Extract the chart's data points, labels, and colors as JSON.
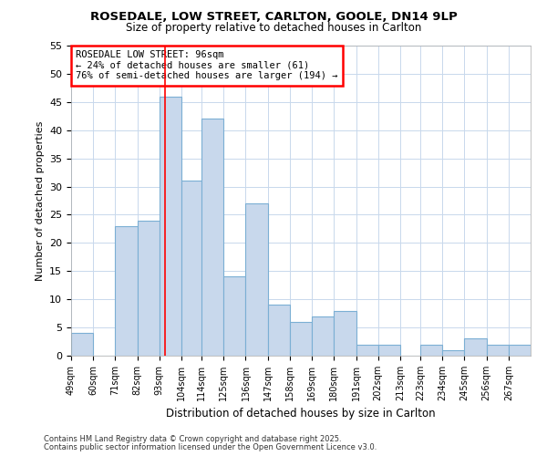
{
  "title": "ROSEDALE, LOW STREET, CARLTON, GOOLE, DN14 9LP",
  "subtitle": "Size of property relative to detached houses in Carlton",
  "xlabel": "Distribution of detached houses by size in Carlton",
  "ylabel": "Number of detached properties",
  "bar_color": "#c8d8ec",
  "bar_edgecolor": "#7bafd4",
  "bar_linewidth": 0.8,
  "categories": [
    "49sqm",
    "60sqm",
    "71sqm",
    "82sqm",
    "93sqm",
    "104sqm",
    "114sqm",
    "125sqm",
    "136sqm",
    "147sqm",
    "158sqm",
    "169sqm",
    "180sqm",
    "191sqm",
    "202sqm",
    "213sqm",
    "223sqm",
    "234sqm",
    "245sqm",
    "256sqm",
    "267sqm"
  ],
  "values": [
    4,
    0,
    23,
    24,
    46,
    31,
    42,
    14,
    27,
    9,
    6,
    7,
    8,
    2,
    2,
    0,
    2,
    1,
    3,
    2,
    2
  ],
  "bin_edges": [
    49,
    60,
    71,
    82,
    93,
    104,
    114,
    125,
    136,
    147,
    158,
    169,
    180,
    191,
    202,
    213,
    223,
    234,
    245,
    256,
    267,
    278
  ],
  "red_line_x": 96,
  "ylim": [
    0,
    55
  ],
  "yticks": [
    0,
    5,
    10,
    15,
    20,
    25,
    30,
    35,
    40,
    45,
    50,
    55
  ],
  "annotation_title": "ROSEDALE LOW STREET: 96sqm",
  "annotation_line1": "← 24% of detached houses are smaller (61)",
  "annotation_line2": "76% of semi-detached houses are larger (194) →",
  "footer1": "Contains HM Land Registry data © Crown copyright and database right 2025.",
  "footer2": "Contains public sector information licensed under the Open Government Licence v3.0.",
  "background_color": "#ffffff",
  "plot_bg_color": "#ffffff",
  "grid_color": "#c8d8ec"
}
